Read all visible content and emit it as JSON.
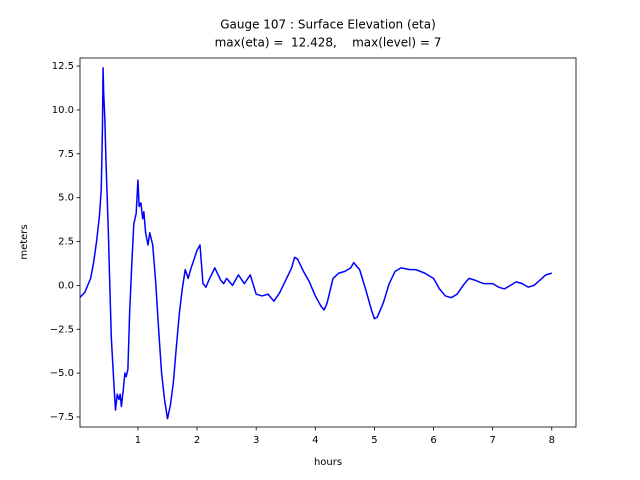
{
  "chart_data": {
    "type": "line",
    "title": "Gauge 107 : Surface Elevation (eta)",
    "subtitle": "max(eta) =  12.428,    max(level) = 7",
    "x_label": "hours",
    "y_label": "meters",
    "xlim": [
      0.02,
      8.41
    ],
    "ylim": [
      -8.07,
      12.96
    ],
    "xticks": [
      1,
      2,
      3,
      4,
      5,
      6,
      7,
      8
    ],
    "yticks": [
      12.5,
      {
        "value": 10,
        "label": "10.0"
      },
      7.5,
      {
        "value": 5,
        "label": "5.0"
      },
      2.5,
      {
        "value": 0,
        "label": "0.0"
      },
      {
        "value": -2.5,
        "label": "−2.5"
      },
      {
        "value": -5,
        "label": "−5.0"
      },
      {
        "value": -7.5,
        "label": "−7.5"
      }
    ],
    "grid": false,
    "x": [
      0.02,
      0.1,
      0.2,
      0.25,
      0.3,
      0.35,
      0.38,
      0.4,
      0.41,
      0.42,
      0.44,
      0.46,
      0.48,
      0.5,
      0.52,
      0.55,
      0.6,
      0.62,
      0.65,
      0.68,
      0.7,
      0.72,
      0.75,
      0.78,
      0.8,
      0.83,
      0.86,
      0.9,
      0.93,
      0.97,
      1.0,
      1.02,
      1.05,
      1.08,
      1.1,
      1.13,
      1.17,
      1.2,
      1.25,
      1.3,
      1.35,
      1.4,
      1.45,
      1.5,
      1.55,
      1.6,
      1.65,
      1.7,
      1.75,
      1.8,
      1.85,
      1.9,
      1.95,
      2.0,
      2.05,
      2.1,
      2.15,
      2.2,
      2.3,
      2.4,
      2.45,
      2.5,
      2.6,
      2.7,
      2.8,
      2.9,
      3.0,
      3.1,
      3.2,
      3.3,
      3.4,
      3.5,
      3.6,
      3.65,
      3.7,
      3.8,
      3.9,
      4.0,
      4.1,
      4.15,
      4.2,
      4.3,
      4.4,
      4.5,
      4.6,
      4.65,
      4.75,
      4.85,
      4.95,
      5.0,
      5.05,
      5.15,
      5.25,
      5.35,
      5.45,
      5.6,
      5.7,
      5.85,
      6.0,
      6.1,
      6.2,
      6.3,
      6.4,
      6.5,
      6.6,
      6.7,
      6.85,
      7.0,
      7.1,
      7.2,
      7.3,
      7.4,
      7.5,
      7.6,
      7.7,
      7.8,
      7.9,
      8.0
    ],
    "series": [
      {
        "name": "eta",
        "color": "#0000ff",
        "values": [
          -0.68,
          -0.4,
          0.4,
          1.3,
          2.5,
          4.0,
          5.5,
          9.0,
          12.4,
          11.0,
          9.5,
          7.0,
          5.0,
          3.0,
          0.5,
          -3.0,
          -6.0,
          -7.1,
          -6.2,
          -6.5,
          -6.2,
          -6.9,
          -6.0,
          -5.0,
          -5.2,
          -4.8,
          -1.5,
          1.5,
          3.5,
          4.1,
          6.0,
          4.5,
          4.7,
          3.8,
          4.2,
          3.0,
          2.3,
          3.0,
          2.3,
          0.2,
          -2.5,
          -5.0,
          -6.5,
          -7.6,
          -6.8,
          -5.5,
          -3.5,
          -1.6,
          -0.2,
          0.9,
          0.4,
          1.0,
          1.5,
          2.0,
          2.3,
          0.1,
          -0.1,
          0.3,
          1.0,
          0.3,
          0.1,
          0.4,
          0.0,
          0.6,
          0.1,
          0.6,
          -0.5,
          -0.6,
          -0.5,
          -0.9,
          -0.4,
          0.3,
          1.0,
          1.6,
          1.5,
          0.8,
          0.2,
          -0.6,
          -1.2,
          -1.4,
          -1.0,
          0.4,
          0.7,
          0.8,
          1.0,
          1.3,
          0.9,
          -0.2,
          -1.4,
          -1.9,
          -1.8,
          -1.0,
          0.1,
          0.8,
          1.0,
          0.9,
          0.9,
          0.7,
          0.4,
          -0.2,
          -0.6,
          -0.7,
          -0.5,
          0.0,
          0.4,
          0.3,
          0.1,
          0.1,
          -0.1,
          -0.2,
          0.0,
          0.2,
          0.1,
          -0.1,
          0.0,
          0.3,
          0.6,
          0.7
        ]
      }
    ]
  }
}
